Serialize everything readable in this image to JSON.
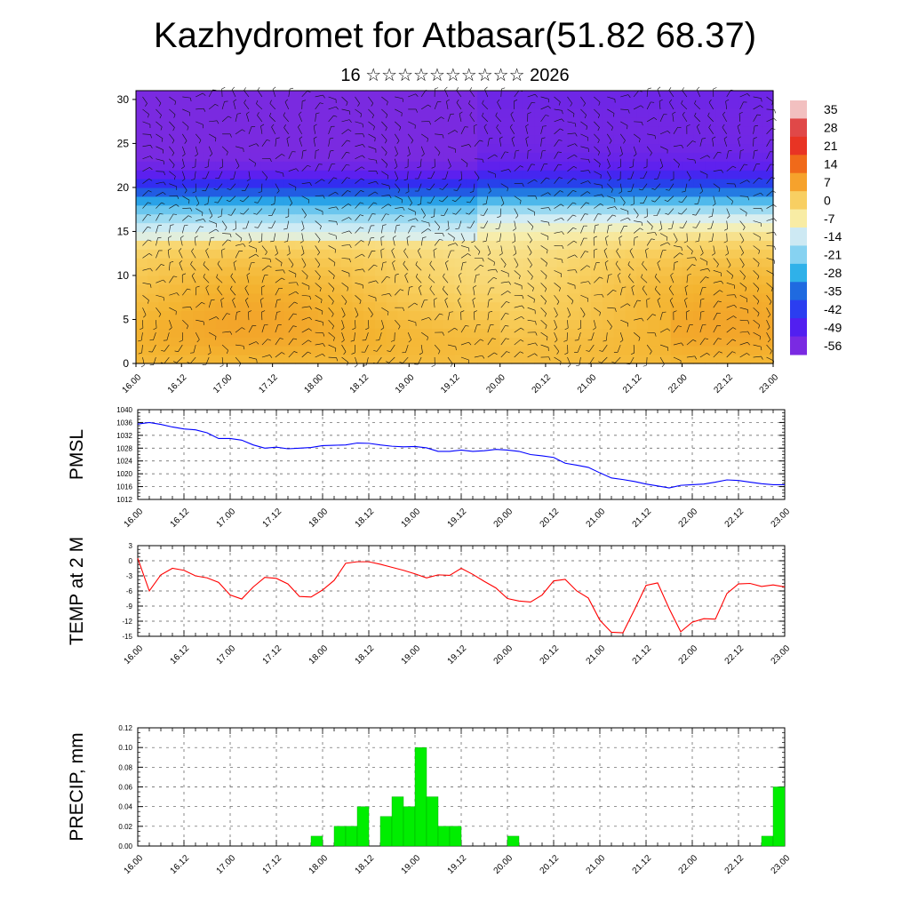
{
  "header": {
    "title": "Kazhydromet for Atbasar(51.82 68.37)",
    "subtitle": "16 ☆☆☆☆☆☆☆☆☆☆ 2026"
  },
  "time_ticks": [
    "16.00",
    "16.12",
    "17.00",
    "17.12",
    "18.00",
    "18.12",
    "19.00",
    "19.12",
    "20.00",
    "20.12",
    "21.00",
    "21.12",
    "22.00",
    "22.12",
    "23.00"
  ],
  "chart_data": [
    {
      "type": "heatmap",
      "title": "",
      "xlabel": "",
      "ylabel": "",
      "categories": [
        "16.00",
        "16.12",
        "17.00",
        "17.12",
        "18.00",
        "18.12",
        "19.00",
        "19.12",
        "20.00",
        "20.12",
        "21.00",
        "21.12",
        "22.00",
        "22.12",
        "23.00"
      ],
      "y_ticks": [
        0,
        5,
        10,
        15,
        20,
        25,
        30
      ],
      "ylim": [
        0,
        31
      ],
      "colorbar_labels": [
        "35",
        "28",
        "21",
        "14",
        "7",
        "0",
        "-7",
        "-14",
        "-21",
        "-28",
        "-35",
        "-42",
        "-49",
        "-56"
      ],
      "colorbar_colors": [
        "#f0c8c8",
        "#d84040",
        "#e83020",
        "#f07018",
        "#f8b030",
        "#f8d870",
        "#f8f0a8",
        "#d0ecf4",
        "#80d0f0",
        "#30b0e8",
        "#2060e0",
        "#2040f0",
        "#5020f0",
        "#7828e0"
      ],
      "note_layers": [
        "temperature (filled)",
        "wind barbs"
      ],
      "row_levels": [
        0,
        2,
        4,
        6,
        8,
        10,
        12,
        14,
        16,
        18,
        20,
        22,
        24,
        26,
        28,
        30
      ],
      "row_temps": [
        -3,
        -2,
        -2,
        -3,
        -4,
        -5,
        -6,
        -8,
        -12,
        -20,
        -38,
        -52,
        -57,
        -58,
        -58,
        -57
      ]
    },
    {
      "type": "line",
      "title": "",
      "ylabel": "PMSL",
      "xlabel": "",
      "ylim": [
        1012,
        1040
      ],
      "y_ticks": [
        1012,
        1016,
        1020,
        1024,
        1028,
        1032,
        1036,
        1040
      ],
      "x": [
        0,
        3,
        6,
        9,
        12,
        15,
        18,
        21,
        24,
        27,
        30,
        33,
        36,
        39,
        42,
        45,
        48,
        51,
        54,
        57,
        60,
        63,
        66,
        69,
        72,
        75,
        78,
        81,
        84,
        87,
        90,
        93,
        96,
        99,
        102,
        105,
        108,
        111,
        114,
        117,
        120,
        123,
        126,
        129,
        132,
        135,
        138,
        141,
        144,
        147,
        150,
        153,
        156,
        159,
        162,
        165,
        168
      ],
      "series": [
        {
          "name": "",
          "color": "#0000ff",
          "values": [
            1035.5,
            1036,
            1035.4,
            1034.6,
            1034,
            1033.7,
            1032.8,
            1031,
            1031,
            1030.5,
            1029,
            1028,
            1028.3,
            1027.8,
            1028,
            1028.2,
            1028.8,
            1028.9,
            1029,
            1029.6,
            1029.5,
            1029,
            1028.6,
            1028.4,
            1028.5,
            1028.1,
            1027,
            1027,
            1027.4,
            1027,
            1027.2,
            1027.6,
            1027.4,
            1027,
            1026,
            1025.6,
            1025.1,
            1023.3,
            1022.7,
            1022,
            1020.3,
            1018.7,
            1018.2,
            1017.6,
            1016.8,
            1016.2,
            1015.6,
            1016.4,
            1016.6,
            1016.8,
            1017.4,
            1018.1,
            1017.9,
            1017.4,
            1016.9,
            1016.6,
            1016.6
          ]
        }
      ]
    },
    {
      "type": "line",
      "title": "",
      "ylabel": "TEMP at 2 M",
      "xlabel": "",
      "ylim": [
        -15,
        3
      ],
      "y_ticks": [
        -15,
        -12,
        -9,
        -6,
        -3,
        0,
        3
      ],
      "x": [
        0,
        3,
        6,
        9,
        12,
        15,
        18,
        21,
        24,
        27,
        30,
        33,
        36,
        39,
        42,
        45,
        48,
        51,
        54,
        57,
        60,
        63,
        66,
        69,
        72,
        75,
        78,
        81,
        84,
        87,
        90,
        93,
        96,
        99,
        102,
        105,
        108,
        111,
        114,
        117,
        120,
        123,
        126,
        129,
        132,
        135,
        138,
        141,
        144,
        147,
        150,
        153,
        156,
        159,
        162,
        165,
        168
      ],
      "series": [
        {
          "name": "",
          "color": "#ff0000",
          "values": [
            0.5,
            -6,
            -2.8,
            -1.5,
            -1.9,
            -3,
            -3.4,
            -4.3,
            -6.8,
            -7.6,
            -5.2,
            -3.3,
            -3.5,
            -4.6,
            -7.1,
            -7.2,
            -5.8,
            -3.9,
            -0.5,
            -0.2,
            -0.2,
            -0.7,
            -1.3,
            -1.9,
            -2.6,
            -3.4,
            -2.8,
            -2.9,
            -1.5,
            -2.7,
            -4.1,
            -5.4,
            -7.5,
            -8,
            -8.2,
            -6.8,
            -4,
            -3.7,
            -6,
            -7.4,
            -11.8,
            -14.2,
            -14.3,
            -9.7,
            -4.9,
            -4.4,
            -9.5,
            -14.1,
            -12.2,
            -11.5,
            -11.6,
            -6.5,
            -4.6,
            -4.5,
            -5.1,
            -4.8,
            -5.2
          ]
        }
      ]
    },
    {
      "type": "bar",
      "title": "",
      "ylabel": "PRECIP, mm",
      "xlabel": "",
      "ylim": [
        0,
        0.12
      ],
      "y_ticks": [
        "0.00",
        "0.02",
        "0.04",
        "0.06",
        "0.08",
        "0.10",
        "0.12"
      ],
      "bar_hours": 3,
      "x": [
        45,
        51,
        54,
        57,
        63,
        66,
        69,
        72,
        75,
        78,
        81,
        96,
        162,
        165
      ],
      "series": [
        {
          "name": "",
          "color": "#00ee00",
          "values": [
            0.01,
            0.02,
            0.02,
            0.04,
            0.03,
            0.05,
            0.04,
            0.1,
            0.05,
            0.02,
            0.02,
            0.01,
            0.01,
            0.06
          ]
        }
      ]
    }
  ]
}
